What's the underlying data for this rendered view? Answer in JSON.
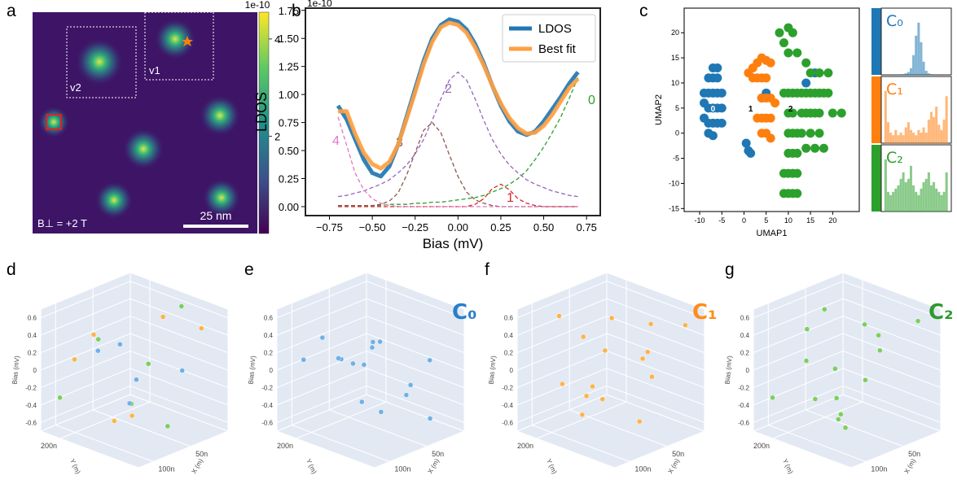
{
  "chart_data": [
    {
      "type": "heatmap",
      "label": "a",
      "colorbar_label": "1e-10",
      "clim": [
        0,
        4.55
      ],
      "cticks": [
        2,
        4
      ],
      "annotations": [
        "v1",
        "v2",
        "B⊥ = +2 T"
      ],
      "scalebar": "25 nm"
    },
    {
      "type": "line",
      "label": "b",
      "offset_label": "1e-10",
      "xlabel": "Bias (mV)",
      "ylabel": "LDOS",
      "legend": "upper right",
      "x": [
        -0.7,
        -0.65,
        -0.6,
        -0.55,
        -0.5,
        -0.45,
        -0.4,
        -0.35,
        -0.3,
        -0.25,
        -0.2,
        -0.15,
        -0.1,
        -0.05,
        0,
        0.05,
        0.1,
        0.15,
        0.2,
        0.25,
        0.3,
        0.35,
        0.4,
        0.45,
        0.5,
        0.55,
        0.6,
        0.65,
        0.7
      ],
      "series": [
        {
          "name": "LDOS",
          "color": "#1f77b4",
          "values": [
            0.9,
            0.78,
            0.6,
            0.42,
            0.3,
            0.27,
            0.36,
            0.55,
            0.8,
            1.05,
            1.3,
            1.5,
            1.62,
            1.67,
            1.65,
            1.58,
            1.45,
            1.28,
            1.08,
            0.9,
            0.76,
            0.67,
            0.64,
            0.67,
            0.76,
            0.87,
            0.98,
            1.1,
            1.2
          ]
        },
        {
          "name": "Best fit",
          "color": "#ff9f40",
          "values": [
            0.85,
            0.85,
            0.65,
            0.48,
            0.38,
            0.34,
            0.4,
            0.55,
            0.78,
            1.02,
            1.27,
            1.47,
            1.6,
            1.64,
            1.62,
            1.55,
            1.42,
            1.26,
            1.08,
            0.92,
            0.79,
            0.7,
            0.65,
            0.66,
            0.72,
            0.82,
            0.94,
            1.06,
            1.14
          ]
        }
      ],
      "components": [
        {
          "name": "0",
          "color": "#2ca02c",
          "values": [
            0.01,
            0.01,
            0.01,
            0.01,
            0.01,
            0.01,
            0.02,
            0.02,
            0.02,
            0.03,
            0.03,
            0.04,
            0.04,
            0.05,
            0.06,
            0.07,
            0.08,
            0.1,
            0.13,
            0.16,
            0.2,
            0.25,
            0.32,
            0.42,
            0.53,
            0.66,
            0.8,
            0.97,
            1.15
          ]
        },
        {
          "name": "1",
          "color": "#d62728",
          "values": [
            0,
            0,
            0,
            0,
            0,
            0,
            0,
            0,
            0,
            0,
            0,
            0,
            0,
            0,
            0,
            0,
            0.02,
            0.07,
            0.16,
            0.2,
            0.15,
            0.07,
            0.03,
            0.01,
            0,
            0,
            0,
            0,
            0
          ]
        },
        {
          "name": "2",
          "color": "#9467bd",
          "values": [
            0.09,
            0.1,
            0.12,
            0.14,
            0.17,
            0.2,
            0.24,
            0.3,
            0.37,
            0.47,
            0.6,
            0.77,
            0.96,
            1.13,
            1.2,
            1.13,
            0.96,
            0.77,
            0.6,
            0.47,
            0.37,
            0.3,
            0.24,
            0.2,
            0.17,
            0.14,
            0.12,
            0.1,
            0.09
          ]
        },
        {
          "name": "3",
          "color": "#8c564b",
          "values": [
            0.01,
            0.01,
            0.01,
            0.01,
            0.01,
            0.02,
            0.05,
            0.12,
            0.28,
            0.48,
            0.68,
            0.75,
            0.66,
            0.46,
            0.27,
            0.13,
            0.06,
            0.03,
            0.01,
            0,
            0,
            0,
            0,
            0,
            0,
            0,
            0,
            0,
            0
          ]
        },
        {
          "name": "4",
          "color": "#e377c2",
          "values": [
            0.8,
            0.55,
            0.3,
            0.15,
            0.07,
            0.03,
            0.01,
            0,
            0,
            0,
            0,
            0,
            0,
            0,
            0,
            0,
            0,
            0,
            0,
            0,
            0,
            0,
            0,
            0,
            0,
            0,
            0,
            0,
            0
          ]
        }
      ],
      "xlim": [
        -0.89,
        0.83
      ],
      "ylim": [
        -0.08,
        1.77
      ],
      "xticks": [
        {
          "value": -0.75,
          "label": "−0.75"
        },
        {
          "value": -0.5,
          "label": "−0.50"
        },
        {
          "value": -0.25,
          "label": "−0.25"
        },
        {
          "value": 0,
          "label": "0.00"
        },
        {
          "value": 0.25,
          "label": "0.25"
        },
        {
          "value": 0.5,
          "label": "0.50"
        },
        {
          "value": 0.75,
          "label": "0.75"
        }
      ],
      "yticks": [
        {
          "value": 0,
          "label": "0.00"
        },
        {
          "value": 0.25,
          "label": "0.25"
        },
        {
          "value": 0.5,
          "label": "0.50"
        },
        {
          "value": 0.75,
          "label": "0.75"
        },
        {
          "value": 1,
          "label": "1.00"
        },
        {
          "value": 1.25,
          "label": "1.25"
        },
        {
          "value": 1.5,
          "label": "1.50"
        },
        {
          "value": 1.75,
          "label": "1.75"
        }
      ]
    },
    {
      "type": "scatter",
      "label": "c",
      "xlabel": "UMAP1",
      "ylabel": "UMAP2",
      "series": [
        {
          "name": "0",
          "color": "#1f77b4",
          "x": [
            -8,
            -7,
            -6,
            -5,
            -8,
            -7,
            -6,
            -5,
            -9,
            -8,
            -7,
            -6,
            -5,
            -8,
            -7,
            -6,
            -7,
            -6,
            0.5,
            1,
            1.5,
            14,
            16,
            5,
            4,
            -9,
            -9,
            -8,
            -7
          ],
          "y": [
            2,
            2,
            2,
            2,
            5,
            5,
            5,
            5,
            8,
            8,
            8,
            8,
            8,
            11,
            11,
            11,
            13,
            13,
            -2,
            -3.5,
            -4,
            10,
            12,
            8,
            7,
            3,
            6,
            0,
            -0.5
          ]
        },
        {
          "name": "1",
          "color": "#ff7f0e",
          "x": [
            2,
            3,
            4,
            5,
            6,
            3,
            4,
            5,
            4,
            5,
            6,
            7,
            3,
            4,
            5,
            6,
            4,
            5,
            6,
            2,
            1
          ],
          "y": [
            13,
            14,
            15,
            14.5,
            14,
            11,
            11,
            11,
            7,
            7,
            7,
            6,
            3,
            3,
            3,
            3,
            0,
            0,
            -1,
            11,
            12
          ]
        },
        {
          "name": "2",
          "color": "#2ca02c",
          "x": [
            9,
            10,
            11,
            12,
            9,
            10,
            11,
            12,
            10,
            11,
            12,
            10,
            11,
            12,
            10,
            11,
            9,
            10,
            11,
            12,
            13,
            14,
            15,
            16,
            17,
            18,
            19,
            13,
            14,
            15,
            16,
            17,
            13,
            15,
            17,
            14,
            16,
            18,
            20,
            22,
            15,
            17,
            19,
            10,
            12,
            14,
            10,
            11,
            8,
            9
          ],
          "y": [
            -12,
            -12,
            -12,
            -12,
            -8,
            -8,
            -8,
            -8,
            -4,
            -4,
            -4,
            0,
            0,
            0,
            4,
            4,
            8,
            8,
            8,
            8,
            8,
            8,
            8,
            8,
            8,
            8,
            8,
            4,
            4,
            4,
            4,
            4,
            0,
            0,
            0,
            -3,
            -3,
            -3,
            4,
            4,
            12,
            12,
            12,
            16,
            16,
            14,
            21,
            20,
            20,
            18
          ]
        }
      ],
      "xlim": [
        -13.5,
        26
      ],
      "ylim": [
        -15.6,
        24.9
      ],
      "xticks": [
        -10,
        -5,
        0,
        5,
        10,
        15,
        20
      ],
      "yticks": [
        -15,
        -10,
        -5,
        0,
        5,
        10,
        15,
        20
      ]
    },
    {
      "type": "bar",
      "title": "C₀",
      "color": "#1f77b4",
      "values": [
        0,
        0,
        0,
        0,
        0,
        0,
        0,
        1,
        2,
        4,
        10,
        30,
        60,
        80,
        50,
        20,
        6,
        2,
        1,
        0,
        0,
        0,
        0,
        0,
        0
      ]
    },
    {
      "type": "bar",
      "title": "C₁",
      "color": "#ff7f0e",
      "values": [
        20,
        8,
        4,
        3,
        5,
        3,
        4,
        3,
        6,
        8,
        5,
        4,
        3,
        5,
        4,
        6,
        4,
        9,
        12,
        10,
        14,
        7,
        5,
        9,
        18
      ]
    },
    {
      "type": "bar",
      "title": "C₂",
      "color": "#2ca02c",
      "values": [
        16,
        6,
        5,
        6,
        7,
        8,
        10,
        12,
        9,
        10,
        14,
        8,
        6,
        5,
        7,
        9,
        10,
        12,
        8,
        9,
        7,
        6,
        5,
        6,
        12
      ]
    },
    {
      "type": "scatter3d",
      "label": "d",
      "zlabel": "Bias (mV)",
      "xlabel": "X (m)",
      "ylabel": "Y (m)",
      "xlim": [
        0,
        1.2e-07
      ],
      "ylim": [
        0,
        2.5e-07
      ],
      "zlim": [
        -0.7,
        0.7
      ],
      "xticks": [
        {
          "value": 5e-08,
          "label": "50n"
        },
        {
          "value": 1e-07,
          "label": "100n"
        }
      ],
      "yticks": [
        {
          "value": 2e-07,
          "label": "200n"
        }
      ],
      "zticks": [
        -0.6,
        -0.4,
        -0.2,
        0,
        0.2,
        0.4,
        0.6
      ],
      "series": [
        {
          "color": "#ffb347",
          "x": [
            2e-08,
            5e-08,
            7e-08,
            1e-07,
            4e-08,
            8e-08
          ],
          "y": [
            3e-08,
            1.5e-07,
            2.1e-07,
            1e-07,
            9e-08,
            2.4e-07
          ],
          "z": [
            0.5,
            -0.6,
            0.3,
            -0.4,
            0.6,
            0
          ]
        },
        {
          "color": "#7ccf5a",
          "x": [
            1e-08,
            6e-08,
            9e-08,
            1.1e-07,
            3e-08,
            7e-08
          ],
          "y": [
            1e-07,
            4e-08,
            1.6e-07,
            2.2e-07,
            1.9e-07,
            7e-08
          ],
          "z": [
            0.6,
            -0.5,
            0.4,
            -0.3,
            -0.6,
            0.2
          ]
        },
        {
          "color": "#6fb0e6",
          "x": [
            3e-08,
            6e-08,
            8e-08,
            4e-08,
            9e-08
          ],
          "y": [
            6e-08,
            1.2e-07,
            1.8e-07,
            2e-07,
            8e-08
          ],
          "z": [
            0,
            -0.1,
            0.2,
            0.1,
            -0.2
          ]
        }
      ]
    },
    {
      "type": "scatter3d",
      "label": "e",
      "title": "C₀",
      "title_color": "#2a7fc9",
      "zlabel": "Bias (mV)",
      "xlabel": "X (m)",
      "ylabel": "Y (m)",
      "xlim": [
        0,
        1.2e-07
      ],
      "ylim": [
        0,
        2.5e-07
      ],
      "zlim": [
        -0.7,
        0.7
      ],
      "xticks": [
        {
          "value": 5e-08,
          "label": "50n"
        },
        {
          "value": 1e-07,
          "label": "100n"
        }
      ],
      "yticks": [
        {
          "value": 2e-07,
          "label": "200n"
        }
      ],
      "zticks": [
        -0.6,
        -0.4,
        -0.2,
        0,
        0.2,
        0.4,
        0.6
      ],
      "series": [
        {
          "color": "#6fb0e6",
          "x": [
            2e-08,
            3e-08,
            5e-08,
            6e-08,
            8e-08,
            9e-08,
            1e-07,
            4e-08,
            7e-08,
            3e-08,
            6e-08,
            9e-08,
            5e-08,
            8e-08,
            2e-08
          ],
          "y": [
            5e-08,
            8e-08,
            1.2e-07,
            2e-07,
            6e-08,
            1.5e-07,
            2.2e-07,
            1.8e-07,
            1e-07,
            3e-08,
            1.7e-07,
            9e-08,
            1.4e-07,
            2.1e-07,
            1.1e-07
          ],
          "z": [
            0.1,
            -0.2,
            0.3,
            0,
            -0.3,
            0.2,
            0.1,
            -0.1,
            0.4,
            -0.5,
            0,
            -0.2,
            0.2,
            0.3,
            -0.4
          ]
        }
      ]
    },
    {
      "type": "scatter3d",
      "label": "f",
      "title": "C₁",
      "title_color": "#ff8c1a",
      "zlabel": "Bias (mV)",
      "xlabel": "X (m)",
      "ylabel": "Y (m)",
      "xlim": [
        0,
        1.2e-07
      ],
      "ylim": [
        0,
        2.5e-07
      ],
      "zlim": [
        -0.7,
        0.7
      ],
      "xticks": [
        {
          "value": 5e-08,
          "label": "50n"
        },
        {
          "value": 1e-07,
          "label": "100n"
        }
      ],
      "yticks": [
        {
          "value": 2e-07,
          "label": "200n"
        }
      ],
      "zticks": [
        -0.6,
        -0.4,
        -0.2,
        0,
        0.2,
        0.4,
        0.6
      ],
      "series": [
        {
          "color": "#ffb347",
          "x": [
            1e-08,
            4e-08,
            6e-08,
            9e-08,
            1e-07,
            3e-08,
            7e-08,
            2e-08,
            8e-08,
            5e-08,
            1.1e-07,
            4e-08,
            6e-08,
            9e-08,
            3e-08
          ],
          "y": [
            3e-08,
            9e-08,
            1.4e-07,
            2e-07,
            7e-08,
            1.8e-07,
            2.3e-07,
            1.2e-07,
            1.6e-07,
            5e-08,
            1e-07,
            2.1e-07,
            2e-08,
            1.3e-07,
            8e-08
          ],
          "z": [
            0.5,
            -0.6,
            0.2,
            0.6,
            -0.1,
            0.4,
            -0.3,
            0,
            -0.5,
            0.3,
            0.6,
            -0.4,
            0.1,
            -0.2,
            0.5
          ]
        }
      ]
    },
    {
      "type": "scatter3d",
      "label": "g",
      "title": "C₂",
      "title_color": "#2e9a2e",
      "zlabel": "Bias (mV)",
      "xlabel": "X (m)",
      "ylabel": "Y (m)",
      "xlim": [
        0,
        1.2e-07
      ],
      "ylim": [
        0,
        2.5e-07
      ],
      "zlim": [
        -0.7,
        0.7
      ],
      "xticks": [
        {
          "value": 5e-08,
          "label": "50n"
        },
        {
          "value": 1e-07,
          "label": "100n"
        }
      ],
      "yticks": [
        {
          "value": 2e-07,
          "label": "200n"
        }
      ],
      "zticks": [
        -0.6,
        -0.4,
        -0.2,
        0,
        0.2,
        0.4,
        0.6
      ],
      "series": [
        {
          "color": "#7ccf5a",
          "x": [
            2e-08,
            5e-08,
            7e-08,
            9e-08,
            1.1e-07,
            1e-08,
            4e-08,
            6e-08,
            8e-08,
            1e-07,
            3e-08,
            7e-08,
            9e-08,
            5e-08,
            1.1e-07
          ],
          "y": [
            2e-08,
            6e-08,
            1.1e-07,
            1.7e-07,
            2.2e-07,
            1.4e-07,
            1.9e-07,
            8e-08,
            4e-08,
            1.3e-07,
            2.4e-07,
            2.1e-07,
            9e-08,
            1.6e-07,
            6e-08
          ],
          "z": [
            0.6,
            0.3,
            -0.6,
            0.5,
            -0.3,
            0.2,
            -0.5,
            0.6,
            0.1,
            -0.2,
            0.4,
            0,
            -0.4,
            -0.6,
            0.3
          ]
        }
      ]
    }
  ]
}
